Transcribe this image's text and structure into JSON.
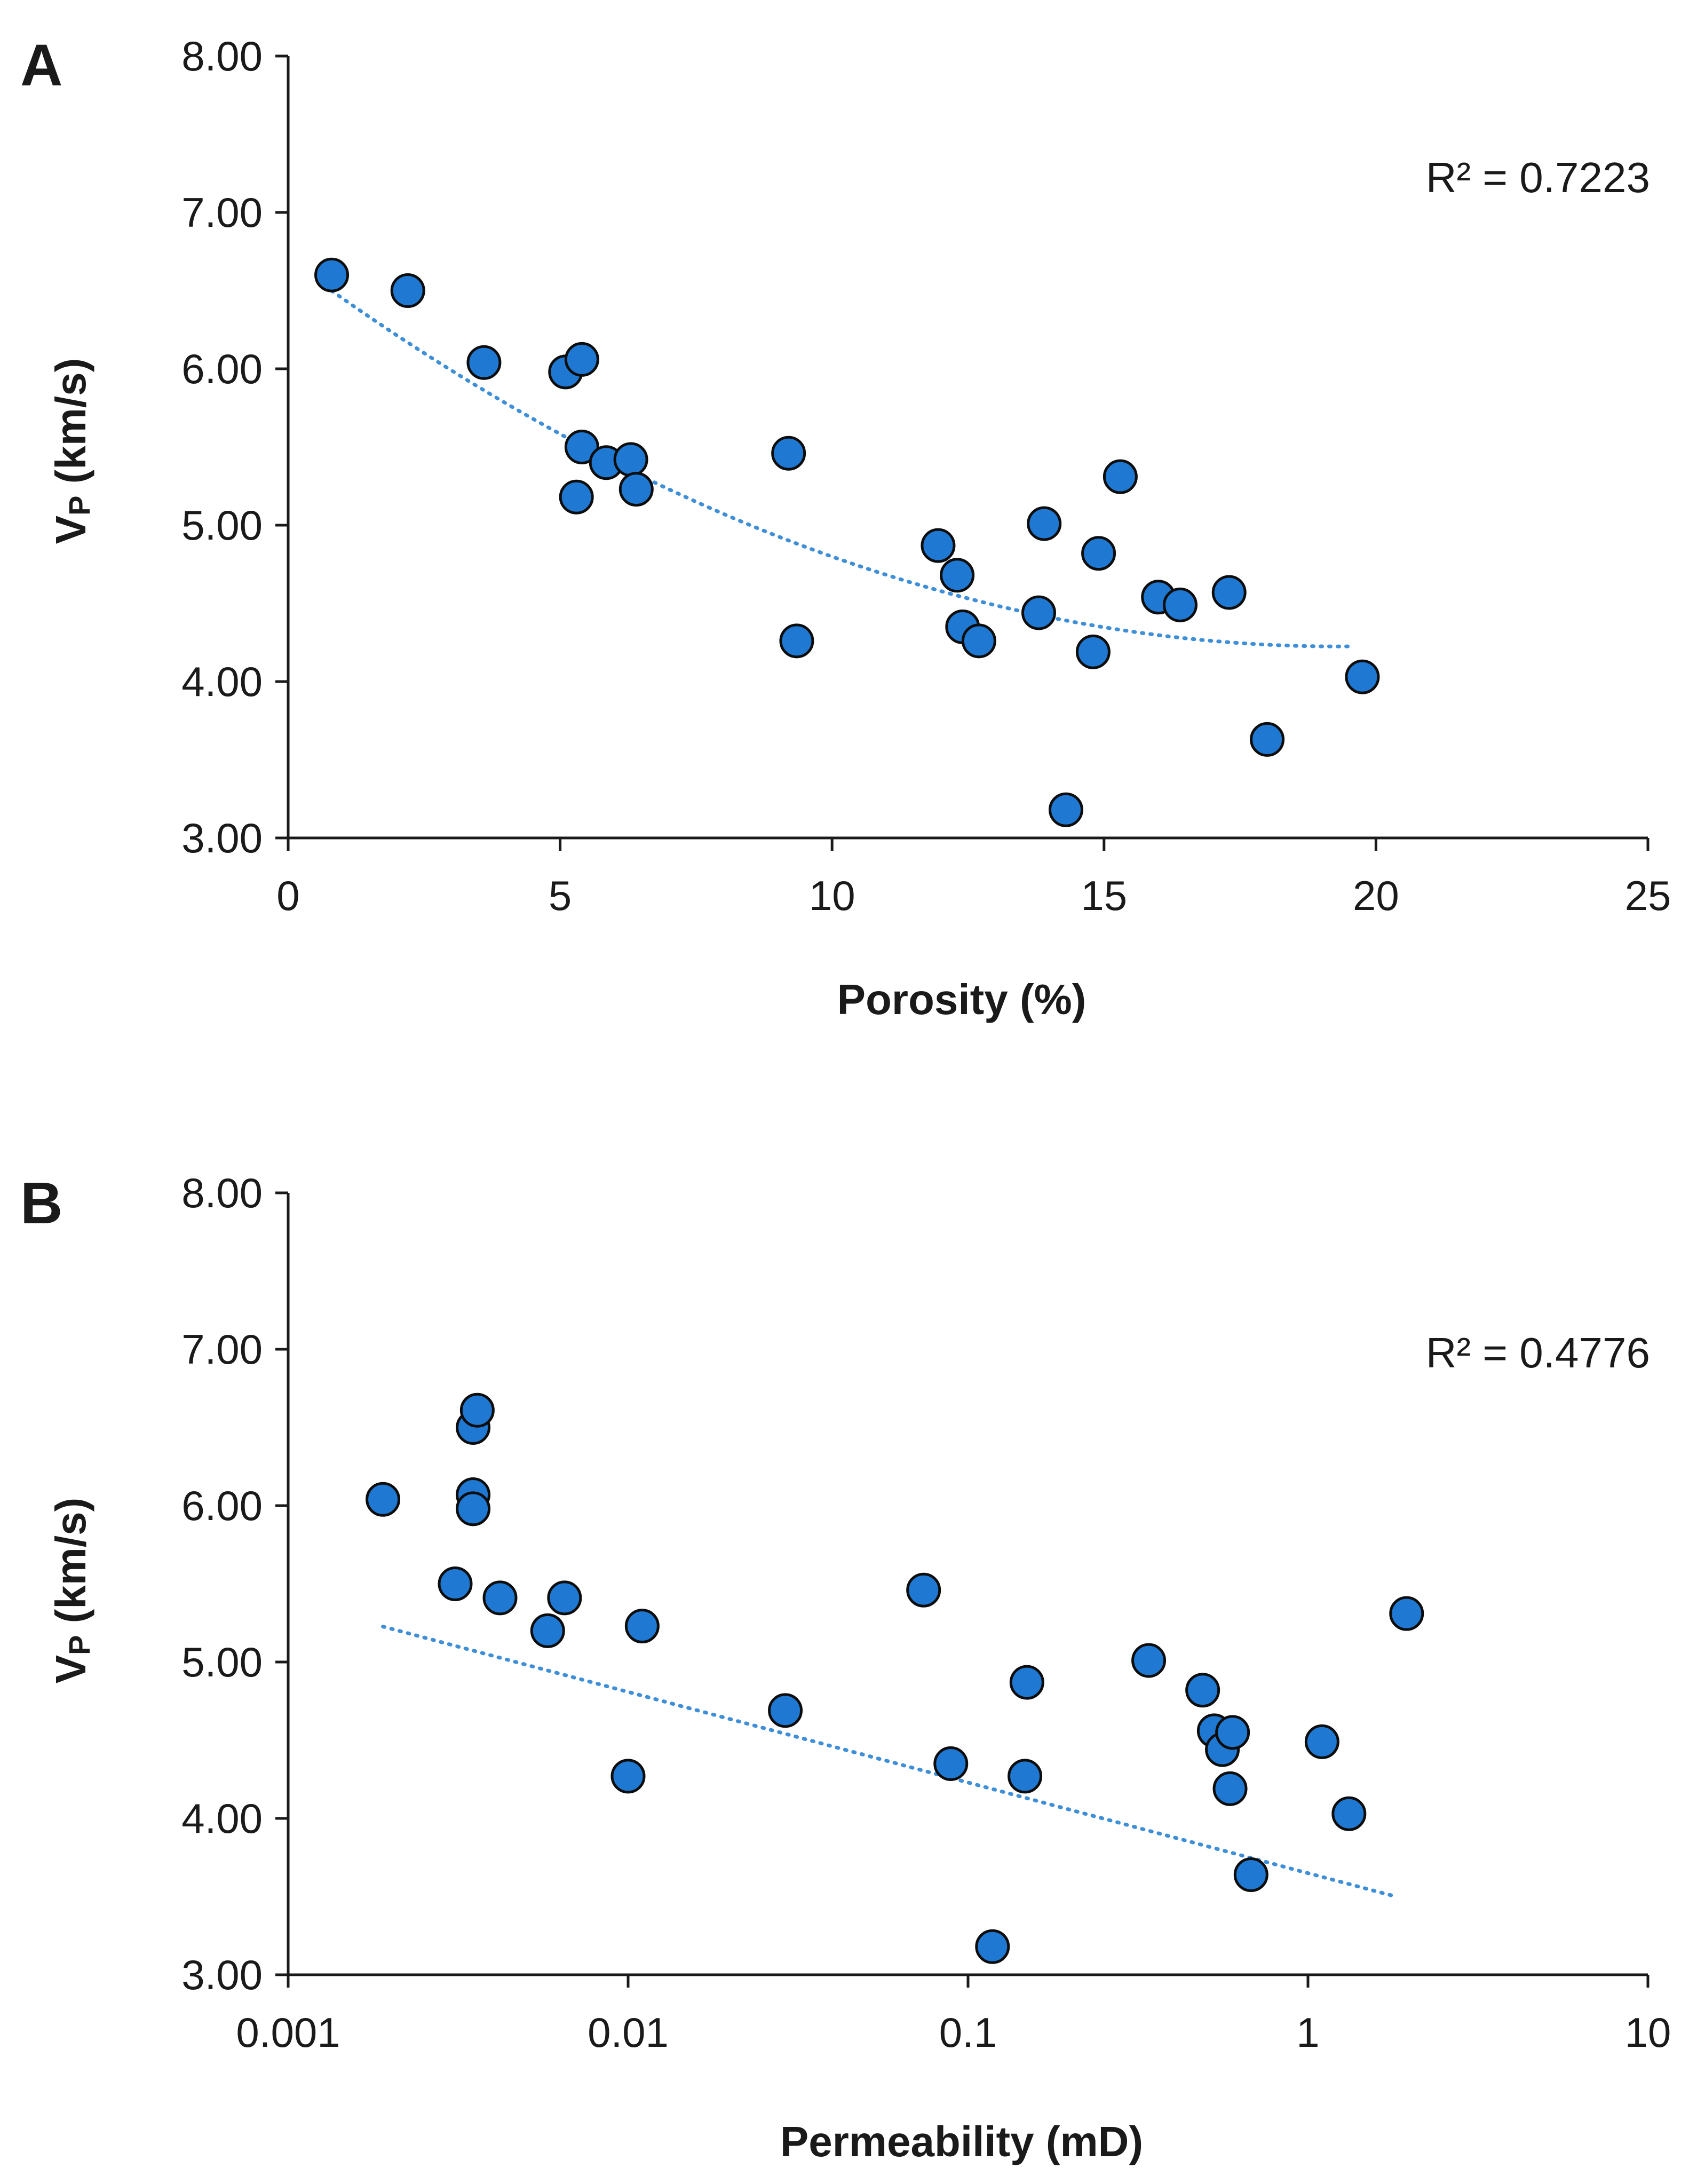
{
  "chart_data": [
    {
      "type": "scatter",
      "panel_label": "A",
      "xlabel": "Porosity (%)",
      "ylabel_main": "V",
      "ylabel_sub": "P",
      "ylabel_rest": " (km/s)",
      "x_scale": "linear",
      "xlim": [
        0,
        25
      ],
      "ylim": [
        3.0,
        8.0
      ],
      "x_ticks": [
        0,
        5,
        10,
        15,
        20,
        25
      ],
      "x_tick_labels": [
        "0",
        "5",
        "10",
        "15",
        "20",
        "25"
      ],
      "y_ticks": [
        3,
        4,
        5,
        6,
        7,
        8
      ],
      "y_tick_labels": [
        "3.00",
        "4.00",
        "5.00",
        "6.00",
        "7.00",
        "8.00"
      ],
      "r2_text": "R² = 0.7223",
      "trendline": {
        "type": "polynomial",
        "x_range": [
          0.8,
          19.6
        ],
        "coefficients": [
          6.7,
          -0.2566,
          0.00665
        ]
      },
      "series": [
        {
          "name": "samples",
          "x": [
            0.8,
            2.2,
            3.6,
            5.1,
            5.4,
            5.3,
            5.4,
            5.85,
            6.3,
            6.4,
            9.2,
            9.35,
            11.95,
            12.3,
            12.4,
            12.7,
            13.8,
            13.9,
            14.3,
            14.8,
            14.9,
            15.3,
            16.0,
            16.4,
            17.3,
            18.0,
            19.75
          ],
          "y": [
            6.6,
            6.5,
            6.04,
            5.98,
            6.06,
            5.18,
            5.5,
            5.4,
            5.42,
            5.23,
            5.46,
            4.26,
            4.87,
            4.68,
            4.35,
            4.26,
            4.44,
            5.01,
            3.18,
            4.19,
            4.82,
            5.31,
            4.54,
            4.49,
            4.57,
            3.63,
            4.03
          ]
        }
      ]
    },
    {
      "type": "scatter",
      "panel_label": "B",
      "xlabel": "Permeability (mD)",
      "ylabel_main": "V",
      "ylabel_sub": "P",
      "ylabel_rest": " (km/s)",
      "x_scale": "log",
      "xlim": [
        0.001,
        10
      ],
      "ylim": [
        3.0,
        8.0
      ],
      "x_ticks": [
        0.001,
        0.01,
        0.1,
        1,
        10
      ],
      "x_tick_labels": [
        "0.001",
        "0.01",
        "0.1",
        "1",
        "10"
      ],
      "y_ticks": [
        3,
        4,
        5,
        6,
        7,
        8
      ],
      "y_tick_labels": [
        "3.00",
        "4.00",
        "5.00",
        "6.00",
        "7.00",
        "8.00"
      ],
      "r2_text": "R² = 0.4776",
      "trendline": {
        "type": "log-linear",
        "x_range": [
          0.0019,
          1.8
        ],
        "intercept": 3.65,
        "slope": -0.5794
      },
      "series": [
        {
          "name": "samples",
          "x": [
            0.0019,
            0.0031,
            0.0035,
            0.0035,
            0.0035,
            0.0036,
            0.0042,
            0.0058,
            0.0065,
            0.01,
            0.011,
            0.029,
            0.074,
            0.089,
            0.118,
            0.147,
            0.149,
            0.34,
            0.49,
            0.53,
            0.56,
            0.59,
            0.6,
            0.68,
            1.1,
            1.32,
            1.95
          ],
          "y": [
            6.04,
            5.5,
            6.5,
            6.07,
            5.98,
            6.61,
            5.41,
            5.2,
            5.41,
            4.27,
            5.23,
            4.69,
            5.46,
            4.35,
            3.18,
            4.27,
            4.87,
            5.01,
            4.82,
            4.56,
            4.44,
            4.19,
            4.55,
            3.64,
            4.49,
            4.03,
            5.31
          ]
        }
      ]
    }
  ]
}
